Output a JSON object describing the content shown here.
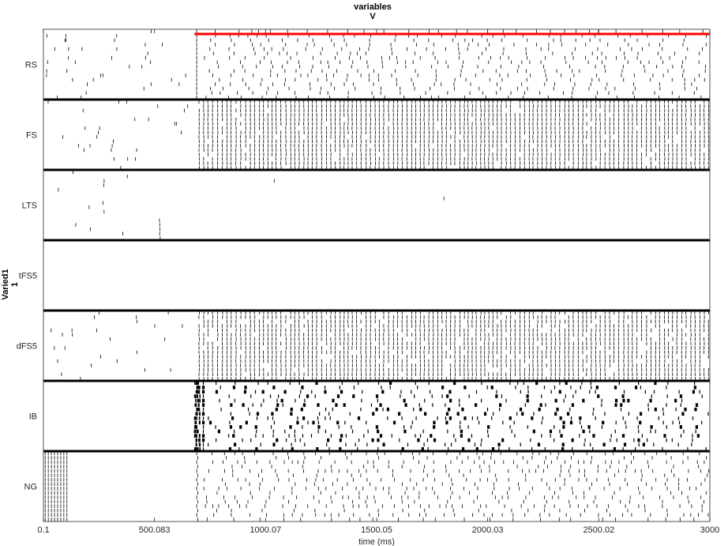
{
  "chart_data": {
    "type": "raster",
    "title_line1": "variables",
    "title_line2": "V",
    "ylabel_line1": "Varied1",
    "ylabel_line2": "1",
    "xlabel": "time (ms)",
    "xlim": [
      0.1,
      3000
    ],
    "xticks": [
      0.1,
      500.083,
      1000.07,
      1500.05,
      2000.03,
      2500.02,
      3000
    ],
    "xtick_labels": [
      "0.1",
      "500.083",
      "1000.07",
      "1500.05",
      "2000.03",
      "2500.02",
      "3000"
    ],
    "populations": [
      {
        "label": "RS",
        "pattern": "sparse",
        "onset_ms": 690,
        "early_density": 0.06,
        "late_rate": 0.55,
        "highlight_row": true
      },
      {
        "label": "FS",
        "pattern": "sync",
        "onset_ms": 690,
        "early_density": 0.08,
        "late_rate": 0.95
      },
      {
        "label": "LTS",
        "pattern": "rare",
        "onset_ms": 0,
        "early_density": 0.05,
        "late_rate": 0.01
      },
      {
        "label": "tFS5",
        "pattern": "silent",
        "onset_ms": 0,
        "early_density": 0,
        "late_rate": 0
      },
      {
        "label": "dFS5",
        "pattern": "sync",
        "onset_ms": 690,
        "early_density": 0.08,
        "late_rate": 0.9
      },
      {
        "label": "IB",
        "pattern": "burst",
        "onset_ms": 690,
        "early_density": 0,
        "late_rate": 0.6
      },
      {
        "label": "NG",
        "pattern": "ng",
        "onset_ms": 690,
        "early_density": 0.9,
        "late_rate": 0.55
      }
    ],
    "colors": {
      "spike": "#000000",
      "separator": "#000000",
      "highlight": "#ff0000",
      "axes": "#262626"
    }
  }
}
